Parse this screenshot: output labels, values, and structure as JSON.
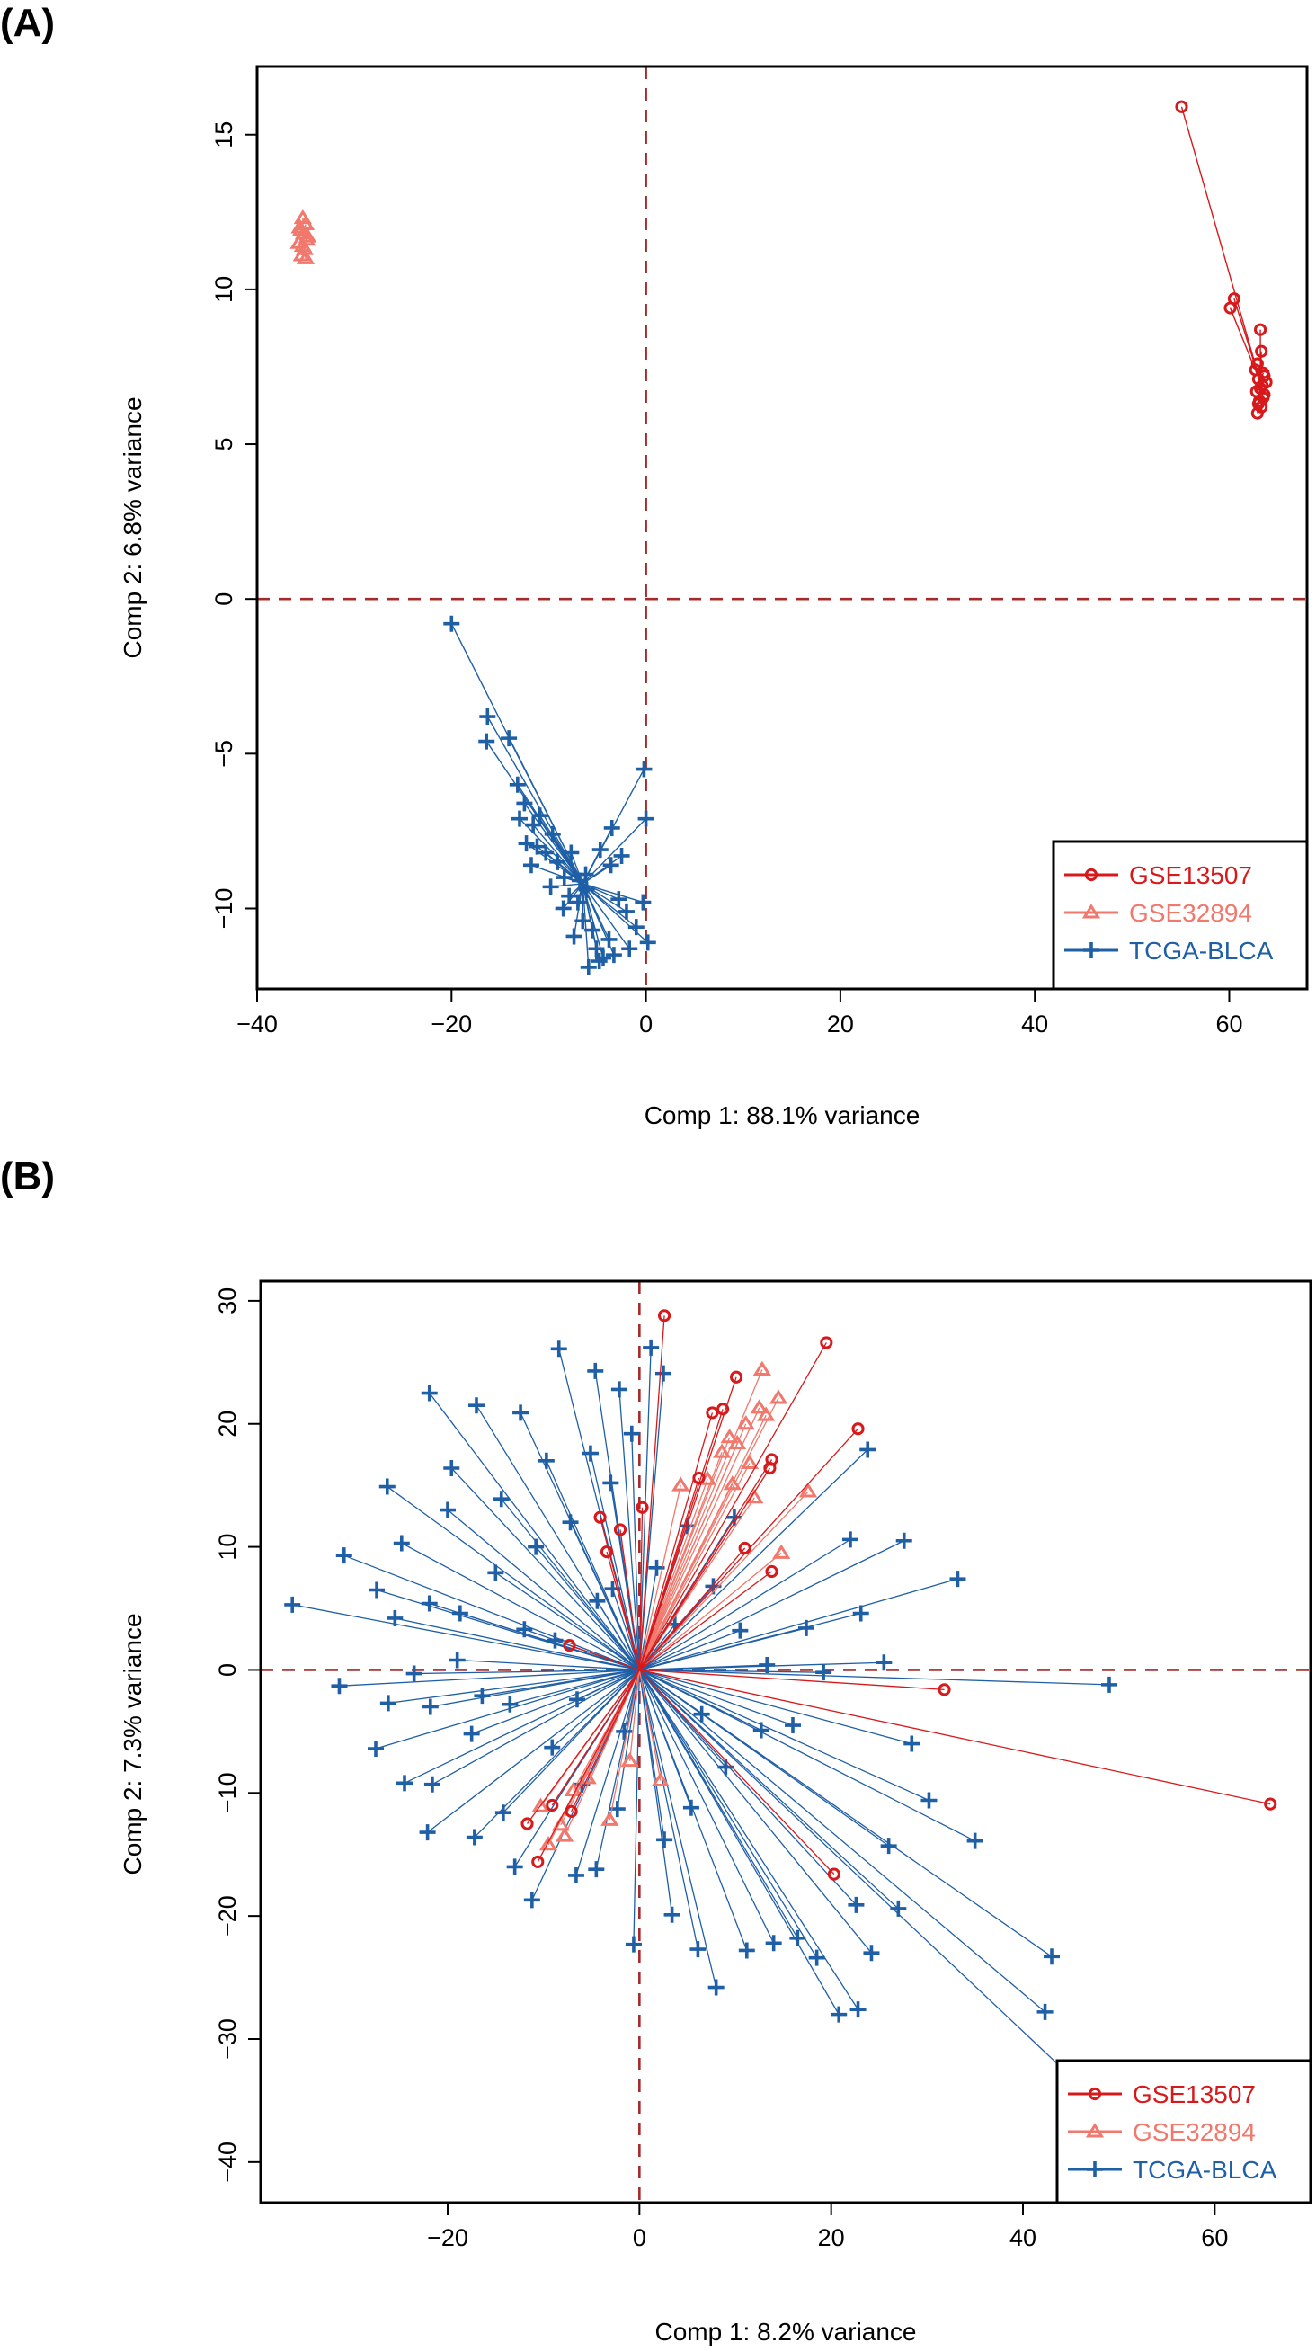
{
  "chart_data": [
    {
      "panel": "(A)",
      "type": "scatter",
      "xlabel": "Comp 1: 88.1% variance",
      "ylabel": "Comp 2: 6.8% variance",
      "xlim": [
        -40,
        68
      ],
      "ylim": [
        -12.6,
        17.2
      ],
      "xticks": [
        -40,
        -20,
        0,
        20,
        40,
        60
      ],
      "yticks": [
        -10,
        -5,
        0,
        5,
        10,
        15
      ],
      "reference_lines": {
        "x": 0,
        "y": 0,
        "style": "dashed",
        "color": "#A52A2A"
      },
      "plot_style": "centroid-star",
      "legend": {
        "position": "bottom-right"
      },
      "series": [
        {
          "name": "GSE13507",
          "color": "#D7191C",
          "marker": "circle",
          "centroid": [
            63.2,
            7.0
          ],
          "points": [
            [
              55.1,
              15.9
            ],
            [
              60.5,
              9.7
            ],
            [
              60.1,
              9.4
            ],
            [
              63.2,
              8.7
            ],
            [
              63.3,
              8.0
            ],
            [
              62.9,
              7.6
            ],
            [
              63.5,
              7.3
            ],
            [
              63.0,
              7.1
            ],
            [
              63.4,
              6.9
            ],
            [
              62.8,
              6.7
            ],
            [
              63.6,
              6.6
            ],
            [
              63.1,
              6.4
            ],
            [
              63.3,
              6.2
            ],
            [
              62.9,
              6.0
            ],
            [
              63.5,
              6.5
            ],
            [
              62.7,
              7.4
            ],
            [
              63.8,
              7.0
            ],
            [
              63.2,
              6.8
            ],
            [
              63.6,
              7.2
            ],
            [
              63.0,
              6.3
            ]
          ]
        },
        {
          "name": "GSE32894",
          "color": "#F1786C",
          "marker": "triangle",
          "centroid": [
            -35.3,
            11.7
          ],
          "points": [
            [
              -35.3,
              12.3
            ],
            [
              -35.0,
              12.1
            ],
            [
              -35.6,
              12.0
            ],
            [
              -35.2,
              11.8
            ],
            [
              -34.9,
              11.6
            ],
            [
              -35.7,
              11.5
            ],
            [
              -35.1,
              11.3
            ],
            [
              -35.4,
              11.1
            ],
            [
              -35.0,
              11.0
            ],
            [
              -35.5,
              11.9
            ],
            [
              -35.3,
              11.4
            ],
            [
              -34.8,
              11.7
            ]
          ]
        },
        {
          "name": "TCGA-BLCA",
          "color": "#1F5FA6",
          "marker": "plus",
          "centroid": [
            -6.5,
            -9.2
          ],
          "points": [
            [
              -20.0,
              -0.8
            ],
            [
              -16.3,
              -3.8
            ],
            [
              -16.4,
              -4.6
            ],
            [
              -14.1,
              -4.5
            ],
            [
              -13.2,
              -6.0
            ],
            [
              -12.5,
              -6.6
            ],
            [
              -13.0,
              -7.1
            ],
            [
              -11.6,
              -7.3
            ],
            [
              -10.9,
              -7.0
            ],
            [
              -11.2,
              -8.0
            ],
            [
              -10.3,
              -8.2
            ],
            [
              -9.6,
              -7.6
            ],
            [
              -9.1,
              -8.5
            ],
            [
              -8.4,
              -9.0
            ],
            [
              -7.7,
              -8.2
            ],
            [
              -7.9,
              -9.6
            ],
            [
              -7.0,
              -9.8
            ],
            [
              -6.5,
              -10.4
            ],
            [
              -6.2,
              -8.9
            ],
            [
              -5.5,
              -10.7
            ],
            [
              -5.1,
              -11.3
            ],
            [
              -4.4,
              -11.6
            ],
            [
              -3.8,
              -11.0
            ],
            [
              -3.3,
              -11.5
            ],
            [
              -2.8,
              -9.7
            ],
            [
              -3.6,
              -8.6
            ],
            [
              -3.5,
              -7.4
            ],
            [
              -4.7,
              -8.1
            ],
            [
              -0.2,
              -5.5
            ],
            [
              0.0,
              -7.1
            ],
            [
              0.2,
              -11.1
            ],
            [
              -0.3,
              -9.8
            ],
            [
              -1.0,
              -10.6
            ],
            [
              -2.0,
              -10.1
            ],
            [
              -2.5,
              -8.3
            ],
            [
              -6.8,
              -9.1
            ],
            [
              -8.5,
              -10.0
            ],
            [
              -9.8,
              -9.3
            ],
            [
              -11.8,
              -8.6
            ],
            [
              -12.3,
              -7.9
            ],
            [
              -5.9,
              -11.9
            ],
            [
              -4.8,
              -11.7
            ],
            [
              -7.4,
              -10.9
            ],
            [
              -6.1,
              -9.4
            ],
            [
              -1.7,
              -11.3
            ]
          ]
        }
      ]
    },
    {
      "panel": "(B)",
      "type": "scatter",
      "xlabel": "Comp 1: 8.2% variance",
      "ylabel": "Comp 2: 7.3% variance",
      "xlim": [
        -39.5,
        70
      ],
      "ylim": [
        -43.3,
        31.6
      ],
      "xticks": [
        -20,
        0,
        20,
        40,
        60
      ],
      "yticks": [
        -40,
        -30,
        -20,
        -10,
        0,
        10,
        20,
        30
      ],
      "reference_lines": {
        "x": 0,
        "y": 0,
        "style": "dashed",
        "color": "#A52A2A"
      },
      "plot_style": "centroid-star",
      "legend": {
        "position": "bottom-right"
      },
      "series": [
        {
          "name": "GSE13507",
          "color": "#D7191C",
          "marker": "circle",
          "centroid": [
            0,
            0
          ],
          "points": [
            [
              2.6,
              28.8
            ],
            [
              19.5,
              26.6
            ],
            [
              10.1,
              23.8
            ],
            [
              7.6,
              20.9
            ],
            [
              8.7,
              21.2
            ],
            [
              22.8,
              19.6
            ],
            [
              13.8,
              17.1
            ],
            [
              13.6,
              16.4
            ],
            [
              -4.1,
              12.4
            ],
            [
              -2.0,
              11.4
            ],
            [
              11.0,
              9.9
            ],
            [
              13.8,
              8.0
            ],
            [
              31.8,
              -1.6
            ],
            [
              65.8,
              -10.9
            ],
            [
              20.3,
              -16.6
            ],
            [
              -11.7,
              -12.5
            ],
            [
              -10.6,
              -15.6
            ],
            [
              -7.1,
              -11.5
            ],
            [
              -9.1,
              -11.0
            ],
            [
              -3.4,
              9.6
            ],
            [
              -7.3,
              2.0
            ],
            [
              0.3,
              13.2
            ],
            [
              6.2,
              15.6
            ]
          ]
        },
        {
          "name": "GSE32894",
          "color": "#F1786C",
          "marker": "triangle",
          "centroid": [
            0,
            0
          ],
          "points": [
            [
              12.8,
              24.4
            ],
            [
              14.5,
              22.1
            ],
            [
              12.5,
              21.3
            ],
            [
              13.2,
              20.7
            ],
            [
              11.1,
              20.0
            ],
            [
              9.4,
              18.9
            ],
            [
              10.2,
              18.4
            ],
            [
              11.5,
              16.8
            ],
            [
              8.6,
              17.7
            ],
            [
              7.1,
              15.5
            ],
            [
              9.7,
              15.1
            ],
            [
              4.3,
              15.0
            ],
            [
              17.6,
              14.5
            ],
            [
              12.0,
              14.0
            ],
            [
              14.8,
              9.5
            ],
            [
              -9.5,
              -14.2
            ],
            [
              -8.2,
              -12.6
            ],
            [
              -10.3,
              -11.1
            ],
            [
              -6.9,
              -9.8
            ],
            [
              -7.8,
              -13.5
            ],
            [
              -3.1,
              -12.2
            ],
            [
              -5.4,
              -8.8
            ],
            [
              2.2,
              -9.0
            ],
            [
              -1.0,
              -7.4
            ]
          ]
        },
        {
          "name": "TCGA-BLCA",
          "color": "#1F5FA6",
          "marker": "plus",
          "centroid": [
            0,
            0
          ],
          "points": [
            [
              -36.2,
              5.3
            ],
            [
              -30.8,
              9.3
            ],
            [
              -26.3,
              14.9
            ],
            [
              -21.9,
              22.5
            ],
            [
              -17.0,
              21.5
            ],
            [
              -12.4,
              20.9
            ],
            [
              -8.4,
              26.1
            ],
            [
              -4.6,
              24.3
            ],
            [
              -2.1,
              22.8
            ],
            [
              1.2,
              26.2
            ],
            [
              2.5,
              24.1
            ],
            [
              -0.8,
              19.2
            ],
            [
              -5.1,
              17.6
            ],
            [
              -9.7,
              17.0
            ],
            [
              -14.4,
              13.9
            ],
            [
              -20.0,
              13.0
            ],
            [
              -24.8,
              10.3
            ],
            [
              -27.4,
              6.5
            ],
            [
              -21.9,
              5.4
            ],
            [
              -18.7,
              4.6
            ],
            [
              -25.5,
              4.2
            ],
            [
              -31.3,
              -1.3
            ],
            [
              -26.2,
              -2.7
            ],
            [
              -23.5,
              -0.3
            ],
            [
              -19.0,
              0.8
            ],
            [
              -21.8,
              -3.0
            ],
            [
              -17.5,
              -5.2
            ],
            [
              -27.5,
              -6.4
            ],
            [
              -24.5,
              -9.2
            ],
            [
              -21.6,
              -9.3
            ],
            [
              -22.1,
              -13.2
            ],
            [
              -17.2,
              -13.6
            ],
            [
              -14.2,
              -11.6
            ],
            [
              -11.2,
              -18.7
            ],
            [
              -6.6,
              -16.7
            ],
            [
              -4.5,
              -16.2
            ],
            [
              -0.6,
              -22.3
            ],
            [
              3.4,
              -19.9
            ],
            [
              6.1,
              -22.7
            ],
            [
              8.0,
              -25.8
            ],
            [
              11.2,
              -22.8
            ],
            [
              14.0,
              -22.2
            ],
            [
              16.5,
              -21.8
            ],
            [
              18.5,
              -23.4
            ],
            [
              20.8,
              -28.0
            ],
            [
              22.8,
              -27.6
            ],
            [
              24.2,
              -23.0
            ],
            [
              22.6,
              -19.1
            ],
            [
              26.0,
              -14.3
            ],
            [
              30.2,
              -10.6
            ],
            [
              35.0,
              -13.9
            ],
            [
              43.0,
              -23.3
            ],
            [
              42.3,
              -27.8
            ],
            [
              54.6,
              -40.1
            ],
            [
              49.0,
              -1.2
            ],
            [
              28.4,
              -6.0
            ],
            [
              25.5,
              0.6
            ],
            [
              23.1,
              4.6
            ],
            [
              33.2,
              7.4
            ],
            [
              27.6,
              10.5
            ],
            [
              22.0,
              10.6
            ],
            [
              23.8,
              17.9
            ],
            [
              17.4,
              3.4
            ],
            [
              19.2,
              -0.2
            ],
            [
              16.0,
              -4.5
            ],
            [
              12.7,
              -4.9
            ],
            [
              9.0,
              -7.9
            ],
            [
              5.4,
              -11.2
            ],
            [
              2.6,
              -13.8
            ],
            [
              -2.3,
              -11.3
            ],
            [
              -6.0,
              -9.3
            ],
            [
              -9.1,
              -6.3
            ],
            [
              -13.5,
              -2.8
            ],
            [
              -15.0,
              7.9
            ],
            [
              -10.8,
              10.0
            ],
            [
              -7.2,
              12.0
            ],
            [
              -3.0,
              15.2
            ],
            [
              5.0,
              11.7
            ],
            [
              7.7,
              6.8
            ],
            [
              10.5,
              3.2
            ],
            [
              13.3,
              0.4
            ],
            [
              3.7,
              3.7
            ],
            [
              -4.4,
              5.6
            ],
            [
              -6.5,
              -2.4
            ],
            [
              -8.8,
              2.4
            ],
            [
              -12.0,
              3.3
            ],
            [
              -16.4,
              -2.1
            ],
            [
              1.8,
              8.3
            ],
            [
              6.5,
              -3.6
            ],
            [
              -1.6,
              -5.0
            ],
            [
              9.9,
              12.4
            ],
            [
              -19.6,
              16.4
            ],
            [
              -2.8,
              6.6
            ],
            [
              -13.0,
              -16.0
            ],
            [
              27.0,
              -19.4
            ]
          ]
        }
      ]
    }
  ]
}
